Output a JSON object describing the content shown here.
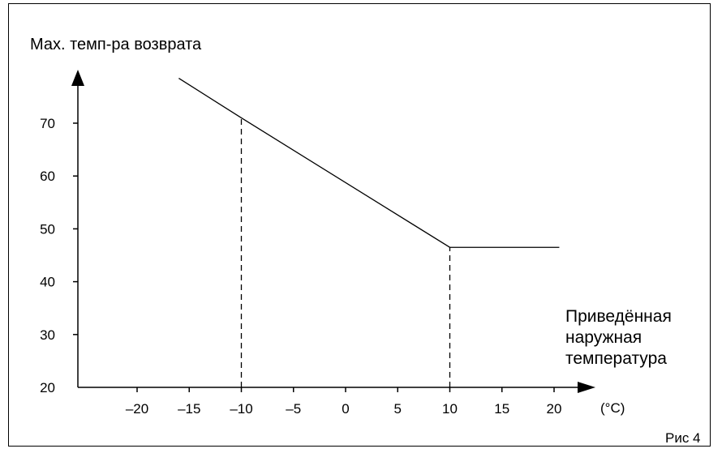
{
  "chart_data": {
    "type": "line",
    "ylabel": "Мах. темп-ра возврата",
    "xlabel": "Приведённая наружная температура",
    "x_unit": "(°C)",
    "figure_label": "Рис 4",
    "x_ticks": [
      -20,
      -15,
      -10,
      -5,
      0,
      5,
      10,
      15,
      20
    ],
    "x_tick_labels": [
      "–20",
      "–15",
      "–10",
      "–5",
      "0",
      "5",
      "10",
      "15",
      "20"
    ],
    "y_ticks": [
      20,
      30,
      40,
      50,
      60,
      70
    ],
    "y_tick_labels": [
      "20",
      "30",
      "40",
      "50",
      "60",
      "70"
    ],
    "xlim": [
      -25,
      23
    ],
    "ylim": [
      20,
      80
    ],
    "grid": false,
    "series": [
      {
        "x": [
          -16,
          -10,
          10,
          20.5
        ],
        "y": [
          78.5,
          71,
          46.5,
          46.5
        ]
      }
    ],
    "reference_lines": [
      {
        "x": -10,
        "y_top": 71
      },
      {
        "x": 10,
        "y_top": 46.5
      }
    ],
    "colors": {
      "line": "#000000",
      "axis": "#000000"
    }
  }
}
